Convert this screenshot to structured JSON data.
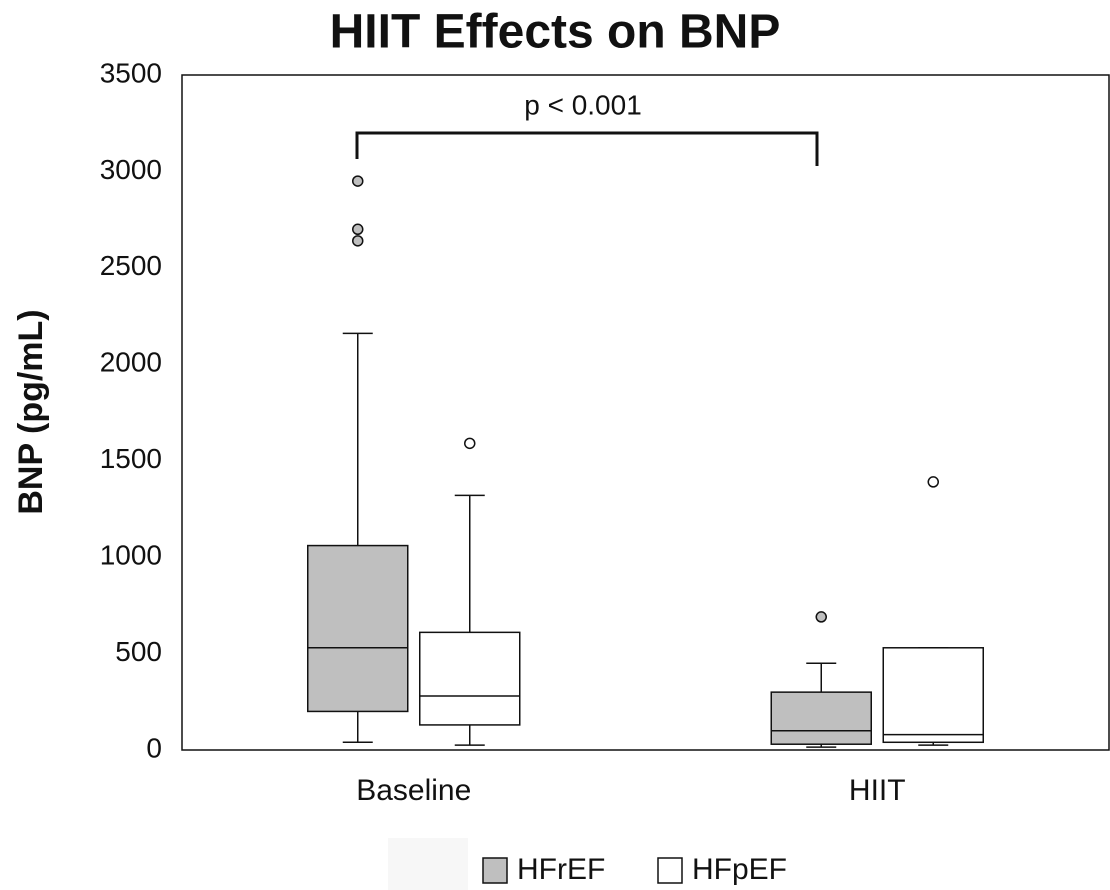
{
  "chart_data": {
    "type": "box",
    "title": "HIIT Effects on BNP",
    "y_label": "BNP (pg/mL)",
    "annotation": "p < 0.001",
    "categories": [
      "Baseline",
      "HIIT"
    ],
    "ylim": [
      0,
      3500
    ],
    "yticks": [
      0,
      500,
      1000,
      1500,
      2000,
      2500,
      3000,
      3500
    ],
    "series": [
      {
        "name": "HFrEF",
        "color": "#bfbfbf",
        "boxes": [
          {
            "whisker_low": 40,
            "q1": 200,
            "median": 530,
            "q3": 1060,
            "whisker_high": 2160,
            "outliers": [
              2950,
              2700,
              2640
            ]
          },
          {
            "whisker_low": 15,
            "q1": 30,
            "median": 100,
            "q3": 300,
            "whisker_high": 450,
            "outliers": [
              690
            ]
          }
        ]
      },
      {
        "name": "HFpEF",
        "color": "#ffffff",
        "boxes": [
          {
            "whisker_low": 25,
            "q1": 130,
            "median": 280,
            "q3": 610,
            "whisker_high": 1320,
            "outliers": [
              1590
            ]
          },
          {
            "whisker_low": 25,
            "q1": 40,
            "median": 80,
            "q3": 530,
            "whisker_high": 530,
            "outliers": [
              1390
            ]
          }
        ]
      }
    ]
  }
}
